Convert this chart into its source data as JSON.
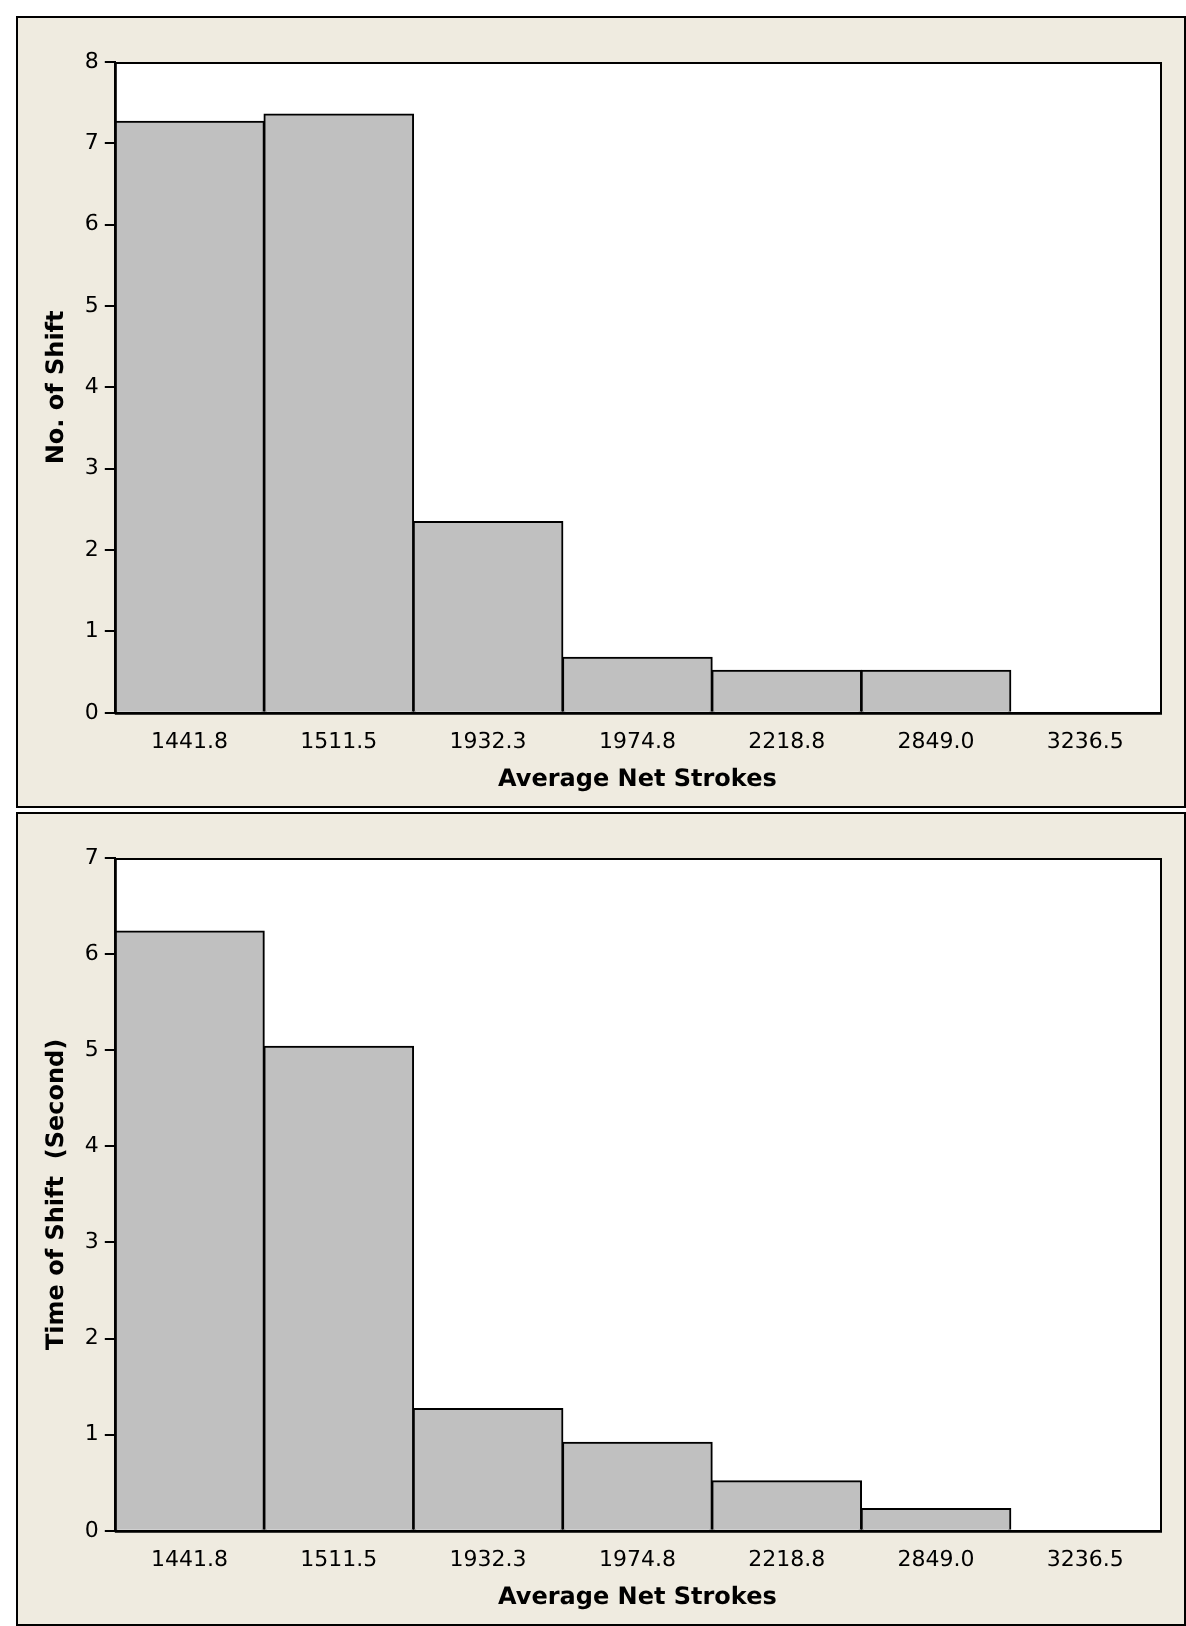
{
  "chart_data": [
    {
      "type": "bar",
      "xlabel": "Average Net Strokes",
      "ylabel": "No. of Shift",
      "categories": [
        "1441.8",
        "1511.5",
        "1932.3",
        "1974.8",
        "2218.8",
        "2849.0",
        "3236.5"
      ],
      "values": [
        7.27,
        7.36,
        2.35,
        0.68,
        0.52,
        0.52,
        0
      ],
      "color": "#c0c0c0",
      "ylim": [
        0,
        8
      ],
      "yticks": [
        0,
        1,
        2,
        3,
        4,
        5,
        6,
        7,
        8
      ],
      "grid": false,
      "legend": false
    },
    {
      "type": "bar",
      "xlabel": "Average Net Strokes",
      "ylabel": "Time of Shift  (Second)",
      "categories": [
        "1441.8",
        "1511.5",
        "1932.3",
        "1974.8",
        "2218.8",
        "2849.0",
        "3236.5"
      ],
      "values": [
        6.24,
        5.04,
        1.27,
        0.92,
        0.52,
        0.23,
        0
      ],
      "color": "#c0c0c0",
      "ylim": [
        0,
        7
      ],
      "yticks": [
        0,
        1,
        2,
        3,
        4,
        5,
        6,
        7
      ],
      "grid": false,
      "legend": false
    }
  ]
}
